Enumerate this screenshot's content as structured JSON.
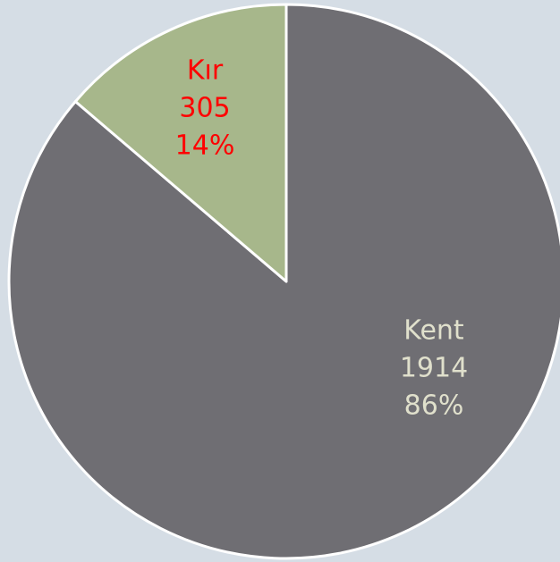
{
  "chart_data": {
    "type": "pie",
    "categories": [
      "Kent",
      "Kır"
    ],
    "values": [
      1914,
      305
    ],
    "percents": [
      86,
      14
    ],
    "percent_labels": [
      "86%",
      "14%"
    ],
    "colors": [
      "#6f6e73",
      "#a7b78b"
    ],
    "label_colors": [
      "#e0e0cc",
      "#ff0000"
    ]
  }
}
